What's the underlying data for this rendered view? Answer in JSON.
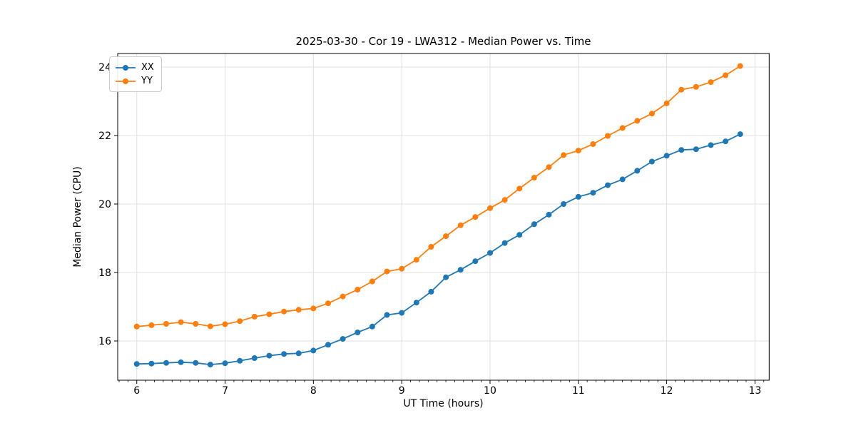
{
  "chart_data": {
    "type": "line",
    "title": "2025-03-30 - Cor 19 - LWA312 - Median Power vs. Time",
    "xlabel": "UT Time (hours)",
    "ylabel": "Median Power (CPU)",
    "legend_position": "upper left",
    "grid": true,
    "xlim": [
      5.784,
      13.161
    ],
    "ylim": [
      14.854,
      24.396
    ],
    "xticks": [
      6,
      7,
      8,
      9,
      10,
      11,
      12,
      13
    ],
    "yticks": [
      16,
      18,
      20,
      22,
      24
    ],
    "x": [
      6.0,
      6.167,
      6.333,
      6.5,
      6.667,
      6.833,
      7.0,
      7.167,
      7.333,
      7.5,
      7.667,
      7.833,
      8.0,
      8.167,
      8.333,
      8.5,
      8.667,
      8.833,
      9.0,
      9.167,
      9.333,
      9.5,
      9.667,
      9.833,
      10.0,
      10.167,
      10.333,
      10.5,
      10.667,
      10.833,
      11.0,
      11.167,
      11.333,
      11.5,
      11.667,
      11.833,
      12.0,
      12.167,
      12.333,
      12.5,
      12.667,
      12.833
    ],
    "series": [
      {
        "name": "XX",
        "color": "#1f77b4",
        "values": [
          15.33,
          15.34,
          15.36,
          15.38,
          15.36,
          15.31,
          15.35,
          15.42,
          15.5,
          15.57,
          15.62,
          15.64,
          15.72,
          15.89,
          16.06,
          16.25,
          16.42,
          16.76,
          16.82,
          17.12,
          17.44,
          17.86,
          18.08,
          18.33,
          18.57,
          18.86,
          19.1,
          19.41,
          19.69,
          20.0,
          20.21,
          20.33,
          20.55,
          20.72,
          20.97,
          21.24,
          21.41,
          21.58,
          21.6,
          21.72,
          21.83,
          22.04
        ]
      },
      {
        "name": "YY",
        "color": "#ff7f0e",
        "values": [
          16.42,
          16.46,
          16.5,
          16.55,
          16.5,
          16.43,
          16.49,
          16.58,
          16.71,
          16.78,
          16.86,
          16.91,
          16.95,
          17.1,
          17.3,
          17.5,
          17.74,
          18.03,
          18.11,
          18.37,
          18.75,
          19.06,
          19.38,
          19.62,
          19.88,
          20.12,
          20.45,
          20.77,
          21.08,
          21.43,
          21.56,
          21.75,
          21.99,
          22.22,
          22.43,
          22.64,
          22.94,
          23.34,
          23.42,
          23.56,
          23.76,
          24.03
        ]
      }
    ],
    "style": {
      "grid_color": "#e0e0e0",
      "spine_color": "#000000",
      "tick_color": "#000000",
      "background": "#ffffff"
    }
  }
}
